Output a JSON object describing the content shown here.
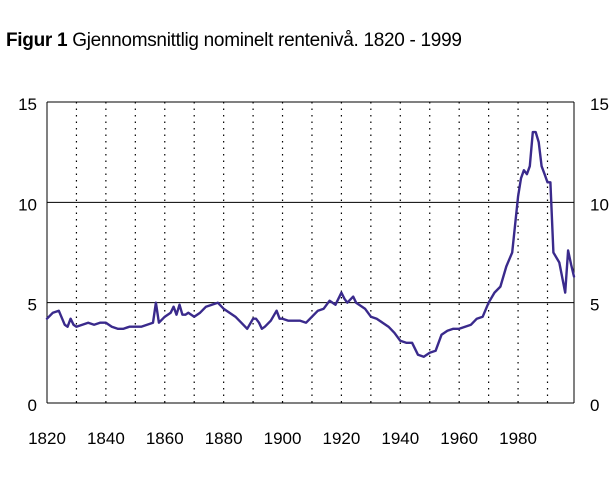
{
  "figure": {
    "label": "Figur 1",
    "title": "Gjennomsnittlig nominelt rentenivå. 1820 - 1999"
  },
  "chart_data": {
    "type": "line",
    "title": "Gjennomsnittlig nominelt rentenivå. 1820 - 1999",
    "xlabel": "",
    "ylabel": "",
    "xlim": [
      1820,
      1999
    ],
    "ylim": [
      0,
      15
    ],
    "x_ticks": [
      "1820",
      "1840",
      "1860",
      "1880",
      "1900",
      "1920",
      "1940",
      "1960",
      "1980"
    ],
    "y_ticks_left": [
      "0",
      "5",
      "10",
      "15"
    ],
    "y_ticks_right": [
      "0",
      "5",
      "10",
      "15"
    ],
    "y_gridlines": [
      5,
      10,
      15
    ],
    "x_gridlines_dotted": [
      1830,
      1840,
      1850,
      1860,
      1870,
      1880,
      1890,
      1900,
      1910,
      1920,
      1930,
      1940,
      1950,
      1960,
      1970,
      1980,
      1990
    ],
    "line_color": "#3a2a8c",
    "series": [
      {
        "x": [
          1820,
          1822,
          1824,
          1826,
          1827,
          1828,
          1829,
          1830,
          1832,
          1834,
          1836,
          1838,
          1840,
          1842,
          1844,
          1846,
          1848,
          1850,
          1852,
          1854,
          1856,
          1857,
          1858,
          1860,
          1862,
          1863,
          1864,
          1865,
          1866,
          1867,
          1868,
          1870,
          1872,
          1874,
          1876,
          1878,
          1880,
          1882,
          1884,
          1886,
          1888,
          1890,
          1891,
          1892,
          1893,
          1894,
          1896,
          1898,
          1899,
          1900,
          1902,
          1904,
          1906,
          1908,
          1910,
          1912,
          1914,
          1916,
          1918,
          1920,
          1921,
          1922,
          1924,
          1925,
          1926,
          1928,
          1930,
          1932,
          1934,
          1936,
          1938,
          1940,
          1942,
          1944,
          1946,
          1948,
          1950,
          1952,
          1954,
          1956,
          1958,
          1960,
          1962,
          1964,
          1966,
          1968,
          1970,
          1972,
          1974,
          1976,
          1978,
          1980,
          1981,
          1982,
          1983,
          1984,
          1985,
          1986,
          1987,
          1988,
          1989,
          1990,
          1991,
          1992,
          1994,
          1996,
          1997,
          1998,
          1999
        ],
        "y": [
          4.2,
          4.5,
          4.6,
          3.9,
          3.8,
          4.2,
          3.9,
          3.8,
          3.9,
          4.0,
          3.9,
          4.0,
          4.0,
          3.8,
          3.7,
          3.7,
          3.8,
          3.8,
          3.8,
          3.9,
          4.0,
          5.0,
          4.0,
          4.3,
          4.5,
          4.8,
          4.4,
          4.9,
          4.4,
          4.4,
          4.5,
          4.3,
          4.5,
          4.8,
          4.9,
          5.0,
          4.7,
          4.5,
          4.3,
          4.0,
          3.7,
          4.2,
          4.2,
          4.0,
          3.7,
          3.8,
          4.1,
          4.6,
          4.2,
          4.2,
          4.1,
          4.1,
          4.1,
          4.0,
          4.3,
          4.6,
          4.7,
          5.1,
          4.9,
          5.5,
          5.2,
          5.0,
          5.3,
          5.0,
          4.9,
          4.7,
          4.3,
          4.2,
          4.0,
          3.8,
          3.5,
          3.1,
          3.0,
          3.0,
          2.4,
          2.3,
          2.5,
          2.6,
          3.4,
          3.6,
          3.7,
          3.7,
          3.8,
          3.9,
          4.2,
          4.3,
          5.0,
          5.5,
          5.8,
          6.8,
          7.5,
          10.3,
          11.2,
          11.6,
          11.4,
          11.8,
          13.5,
          13.5,
          13.0,
          11.8,
          11.4,
          11.0,
          11.0,
          7.5,
          7.0,
          5.5,
          7.6,
          6.9,
          6.3
        ]
      }
    ]
  }
}
